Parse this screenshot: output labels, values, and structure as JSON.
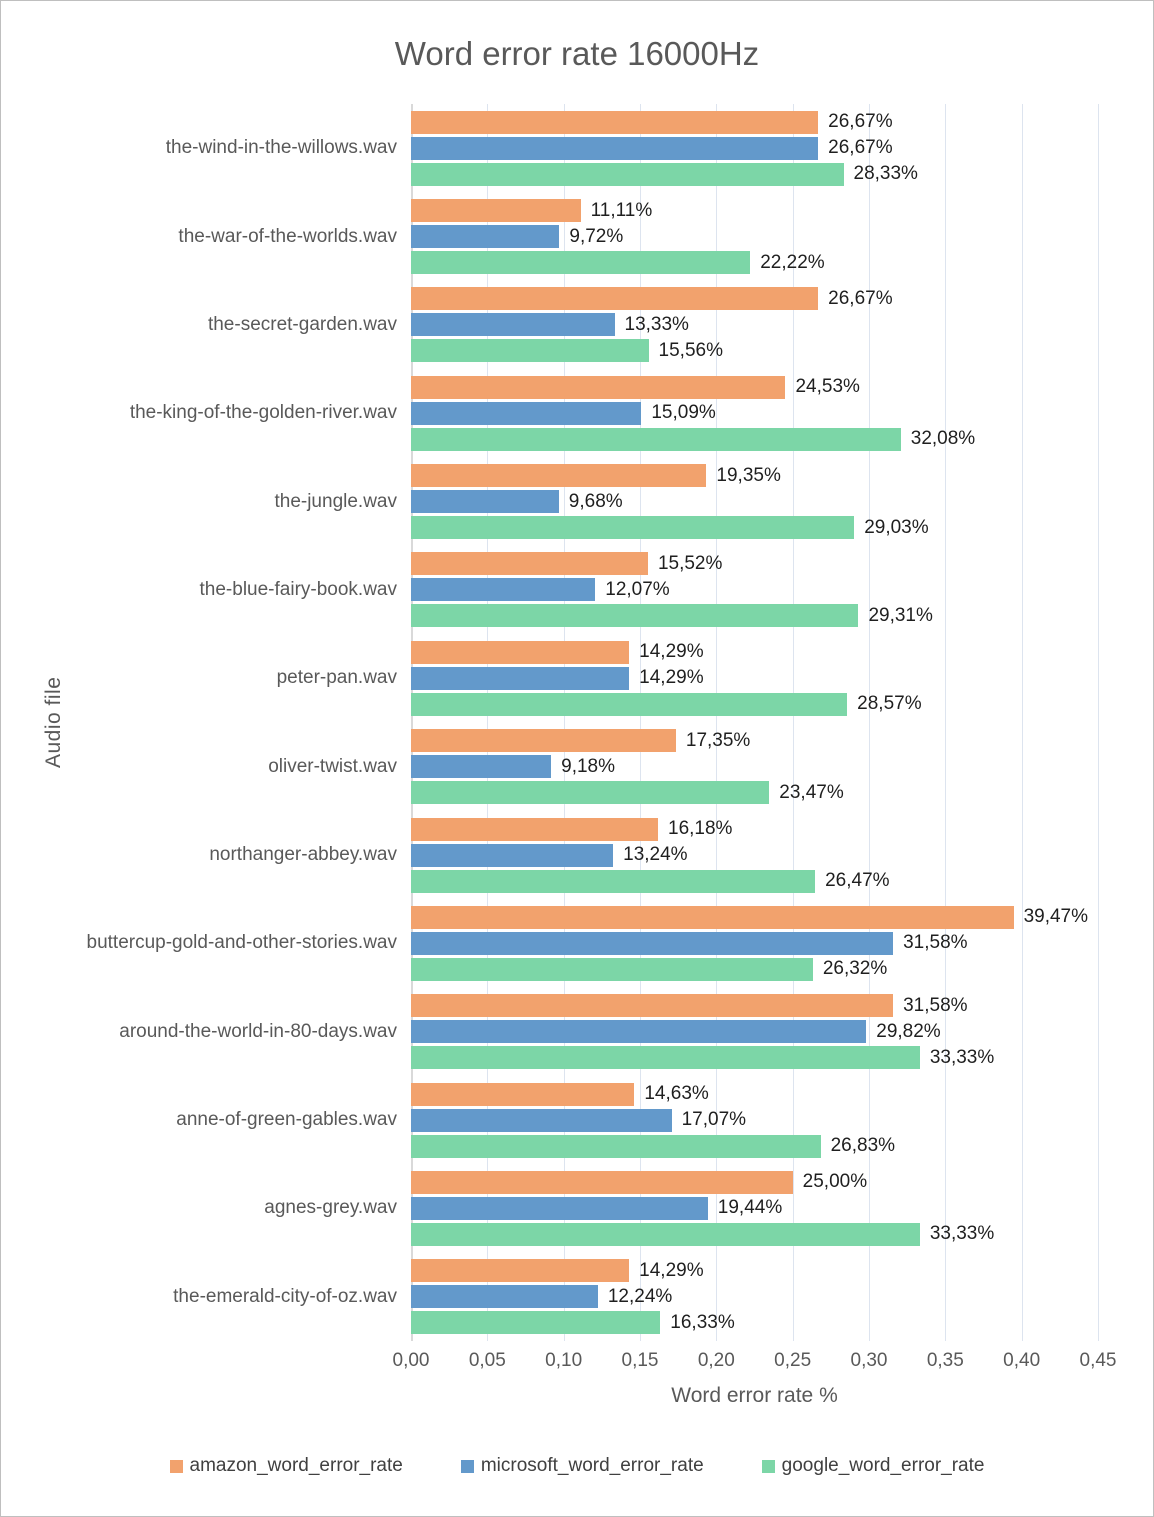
{
  "title": "Word error rate 16000Hz",
  "chart_data": {
    "type": "bar",
    "orientation": "horizontal",
    "title": "Word error rate 16000Hz",
    "xlabel": "Word error rate %",
    "ylabel": "Audio file",
    "xlim": [
      0,
      0.45
    ],
    "x_ticks": [
      "0,00",
      "0,05",
      "0,10",
      "0,15",
      "0,20",
      "0,25",
      "0,30",
      "0,35",
      "0,40",
      "0,45"
    ],
    "grid": true,
    "legend_position": "bottom",
    "value_label_format": "percent-comma",
    "categories": [
      "the-wind-in-the-willows.wav",
      "the-war-of-the-worlds.wav",
      "the-secret-garden.wav",
      "the-king-of-the-golden-river.wav",
      "the-jungle.wav",
      "the-blue-fairy-book.wav",
      "peter-pan.wav",
      "oliver-twist.wav",
      "northanger-abbey.wav",
      "buttercup-gold-and-other-stories.wav",
      "around-the-world-in-80-days.wav",
      "anne-of-green-gables.wav",
      "agnes-grey.wav",
      "the-emerald-city-of-oz.wav"
    ],
    "series": [
      {
        "name": "amazon_word_error_rate",
        "color": "#F2A26D",
        "values": [
          0.2667,
          0.1111,
          0.2667,
          0.2453,
          0.1935,
          0.1552,
          0.1429,
          0.1735,
          0.1618,
          0.3947,
          0.3158,
          0.1463,
          0.25,
          0.1429
        ],
        "labels": [
          "26,67%",
          "11,11%",
          "26,67%",
          "24,53%",
          "19,35%",
          "15,52%",
          "14,29%",
          "17,35%",
          "16,18%",
          "39,47%",
          "31,58%",
          "14,63%",
          "25,00%",
          "14,29%"
        ]
      },
      {
        "name": "microsoft_word_error_rate",
        "color": "#6399CB",
        "values": [
          0.2667,
          0.0972,
          0.1333,
          0.1509,
          0.0968,
          0.1207,
          0.1429,
          0.0918,
          0.1324,
          0.3158,
          0.2982,
          0.1707,
          0.1944,
          0.1224
        ],
        "labels": [
          "26,67%",
          "9,72%",
          "13,33%",
          "15,09%",
          "9,68%",
          "12,07%",
          "14,29%",
          "9,18%",
          "13,24%",
          "31,58%",
          "29,82%",
          "17,07%",
          "19,44%",
          "12,24%"
        ]
      },
      {
        "name": "google_word_error_rate",
        "color": "#7CD6A7",
        "values": [
          0.2833,
          0.2222,
          0.1556,
          0.3208,
          0.2903,
          0.2931,
          0.2857,
          0.2347,
          0.2647,
          0.2632,
          0.3333,
          0.2683,
          0.3333,
          0.1633
        ],
        "labels": [
          "28,33%",
          "22,22%",
          "15,56%",
          "32,08%",
          "29,03%",
          "29,31%",
          "28,57%",
          "23,47%",
          "26,47%",
          "26,32%",
          "33,33%",
          "26,83%",
          "33,33%",
          "16,33%"
        ]
      }
    ],
    "colors": {
      "grid": "#dde4ef",
      "axis_line": "#d9d9d9",
      "title_text": "#595959",
      "axis_text": "#595959",
      "value_label_text": "#1f1f1f",
      "legend_text": "#404040"
    }
  }
}
